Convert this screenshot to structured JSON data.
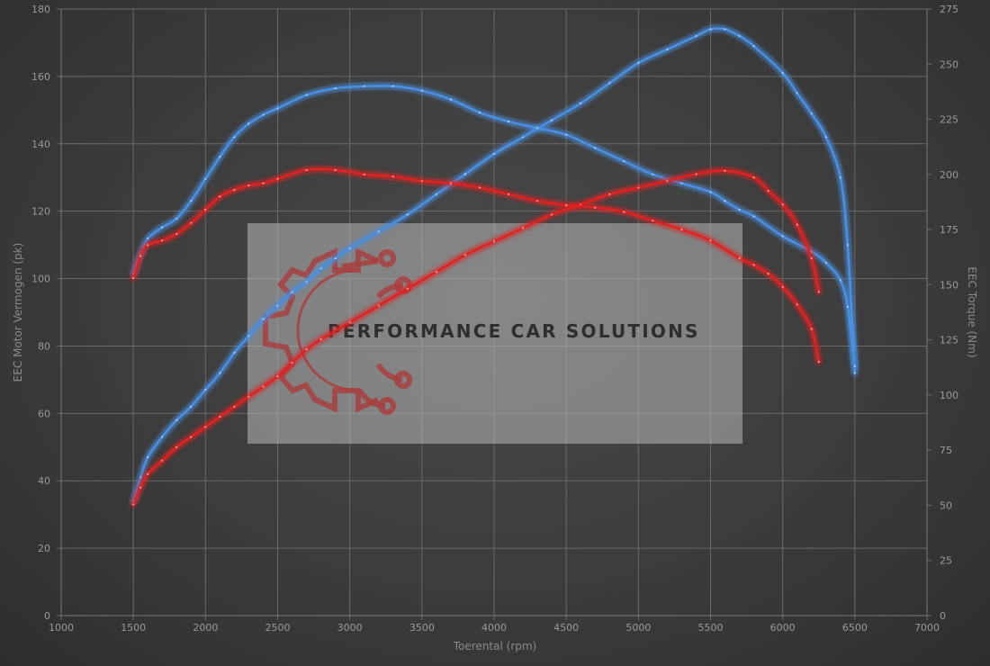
{
  "chart_data": {
    "type": "line",
    "xlabel": "Toerental (rpm)",
    "ylabel_left": "EEC Motor Vermogen (pk)",
    "ylabel_right": "EEC Torque (Nm)",
    "xlim": [
      1000,
      7000
    ],
    "ylim_left": [
      0,
      180
    ],
    "ylim_right": [
      0,
      275
    ],
    "x_ticks": [
      1000,
      1500,
      2000,
      2500,
      3000,
      3500,
      4000,
      4500,
      5000,
      5500,
      6000,
      6500,
      7000
    ],
    "y_ticks_left": [
      0,
      20,
      40,
      60,
      80,
      100,
      120,
      140,
      160,
      180
    ],
    "y_ticks_right": [
      0,
      25,
      50,
      75,
      100,
      125,
      150,
      175,
      200,
      225,
      250,
      275
    ],
    "grid": true,
    "series": [
      {
        "axis": "left",
        "color": "#4a90e2",
        "x": [
          1500,
          1550,
          1600,
          1700,
          1800,
          1900,
          2000,
          2100,
          2200,
          2300,
          2400,
          2500,
          2600,
          2700,
          2800,
          2900,
          3000,
          3200,
          3400,
          3600,
          3800,
          4000,
          4200,
          4400,
          4600,
          4800,
          5000,
          5200,
          5400,
          5500,
          5600,
          5700,
          5800,
          6000,
          6100,
          6200,
          6300,
          6400,
          6450,
          6500
        ],
        "values": [
          34,
          41,
          47,
          53,
          58,
          62,
          67,
          72,
          78,
          83,
          88,
          92,
          96,
          99,
          103,
          106,
          109,
          114,
          119,
          125,
          131,
          137,
          142,
          147,
          152,
          158,
          164,
          168,
          172,
          174,
          174,
          172,
          169,
          161,
          155,
          149,
          142,
          130,
          110,
          72
        ]
      },
      {
        "axis": "right",
        "color": "#4a90e2",
        "x": [
          1500,
          1550,
          1600,
          1700,
          1800,
          1900,
          2000,
          2100,
          2200,
          2300,
          2400,
          2500,
          2700,
          2900,
          3100,
          3300,
          3500,
          3700,
          3900,
          4100,
          4300,
          4500,
          4700,
          4900,
          5100,
          5300,
          5500,
          5600,
          5700,
          5800,
          6000,
          6200,
          6300,
          6400,
          6450,
          6500
        ],
        "values": [
          155,
          164,
          171,
          176,
          180,
          188,
          198,
          208,
          217,
          223,
          227,
          230,
          236,
          239,
          240,
          240,
          238,
          234,
          228,
          224,
          221,
          218,
          212,
          206,
          200,
          196,
          192,
          188,
          184,
          181,
          172,
          165,
          160,
          152,
          140,
          113
        ]
      },
      {
        "axis": "left",
        "color": "#e02020",
        "x": [
          1500,
          1550,
          1600,
          1700,
          1800,
          1900,
          2000,
          2100,
          2200,
          2300,
          2400,
          2500,
          2600,
          2700,
          2800,
          3000,
          3200,
          3400,
          3600,
          3800,
          4000,
          4200,
          4400,
          4600,
          4800,
          5000,
          5200,
          5400,
          5600,
          5800,
          5900,
          6000,
          6100,
          6200,
          6250
        ],
        "values": [
          33,
          38,
          42,
          46,
          50,
          53,
          56,
          59,
          62,
          65,
          68,
          71,
          75,
          79,
          82,
          87,
          92,
          97,
          102,
          107,
          111,
          115,
          119,
          122,
          125,
          127,
          129,
          131,
          132,
          130,
          126,
          122,
          116,
          106,
          96
        ]
      },
      {
        "axis": "right",
        "color": "#e02020",
        "x": [
          1500,
          1550,
          1600,
          1700,
          1800,
          1900,
          2000,
          2100,
          2200,
          2300,
          2400,
          2500,
          2700,
          2900,
          3100,
          3300,
          3500,
          3700,
          3900,
          4100,
          4300,
          4500,
          4700,
          4900,
          5100,
          5300,
          5500,
          5700,
          5800,
          5900,
          6000,
          6100,
          6200,
          6250
        ],
        "values": [
          153,
          163,
          168,
          170,
          173,
          178,
          184,
          190,
          193,
          195,
          196,
          198,
          202,
          202,
          200,
          199,
          197,
          196,
          194,
          191,
          188,
          186,
          185,
          183,
          179,
          175,
          170,
          162,
          159,
          155,
          149,
          141,
          130,
          115
        ]
      }
    ]
  },
  "watermark": {
    "text": "PERFORMANCE CAR SOLUTIONS"
  }
}
